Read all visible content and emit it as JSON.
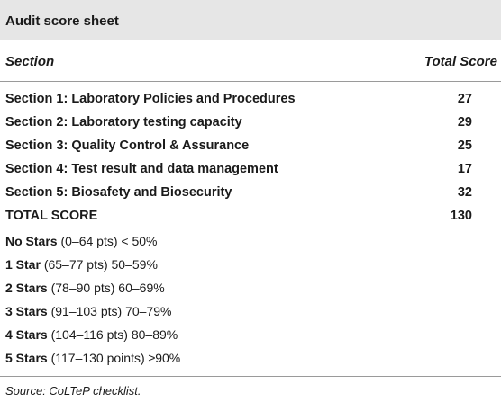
{
  "caption": "Audit score sheet",
  "header": {
    "section": "Section",
    "total_score": "Total Score"
  },
  "rows": [
    {
      "section": "Section 1: Laboratory Policies and Procedures",
      "score": "27"
    },
    {
      "section": "Section 2: Laboratory testing capacity",
      "score": "29"
    },
    {
      "section": "Section 3: Quality Control & Assurance",
      "score": "25"
    },
    {
      "section": "Section 4: Test result and data management",
      "score": "17"
    },
    {
      "section": "Section 5: Biosafety and Biosecurity",
      "score": "32"
    },
    {
      "section": "TOTAL SCORE",
      "score": "130"
    }
  ],
  "stars": [
    {
      "label": "No Stars",
      "detail": "(0–64 pts) < 50%"
    },
    {
      "label": "1 Star",
      "detail": "(65–77 pts) 50–59%"
    },
    {
      "label": "2 Stars",
      "detail": "(78–90 pts) 60–69%"
    },
    {
      "label": "3 Stars",
      "detail": "(91–103 pts) 70–79%"
    },
    {
      "label": "4 Stars",
      "detail": "(104–116 pts) 80–89%"
    },
    {
      "label": "5 Stars",
      "detail": "(117–130 points) ≥90%"
    }
  ],
  "source": "Source: CoLTeP checklist."
}
